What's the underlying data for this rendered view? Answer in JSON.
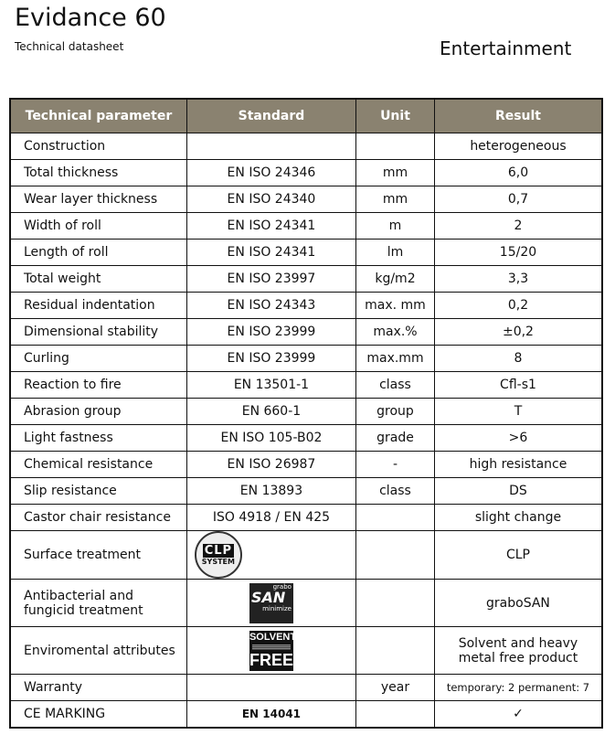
{
  "header": {
    "title": "Evidance 60",
    "subtitle": "Technical datasheet",
    "category": "Entertainment"
  },
  "table": {
    "columns": [
      "Technical parameter",
      "Standard",
      "Unit",
      "Result"
    ],
    "rows": [
      {
        "parameter": "Construction",
        "standard": "",
        "unit": "",
        "result": "heterogeneous"
      },
      {
        "parameter": "Total thickness",
        "standard": "EN ISO 24346",
        "unit": "mm",
        "result": "6,0"
      },
      {
        "parameter": "Wear layer thickness",
        "standard": "EN ISO 24340",
        "unit": "mm",
        "result": "0,7"
      },
      {
        "parameter": "Width of roll",
        "standard": "EN ISO 24341",
        "unit": "m",
        "result": "2"
      },
      {
        "parameter": "Length of roll",
        "standard": "EN ISO 24341",
        "unit": "lm",
        "result": "15/20"
      },
      {
        "parameter": "Total weight",
        "standard": "EN ISO 23997",
        "unit": "kg/m2",
        "result": "3,3"
      },
      {
        "parameter": "Residual indentation",
        "standard": "EN ISO 24343",
        "unit": "max. mm",
        "result": "0,2"
      },
      {
        "parameter": "Dimensional stability",
        "standard": "EN ISO 23999",
        "unit": "max.%",
        "result": "±0,2"
      },
      {
        "parameter": "Curling",
        "standard": "EN ISO 23999",
        "unit": "max.mm",
        "result": "8"
      },
      {
        "parameter": "Reaction to fire",
        "standard": "EN 13501-1",
        "unit": "class",
        "result": "Cfl-s1"
      },
      {
        "parameter": "Abrasion group",
        "standard": "EN 660-1",
        "unit": "group",
        "result": "T"
      },
      {
        "parameter": "Light fastness",
        "standard": "EN ISO 105-B02",
        "unit": "grade",
        "result": ">6"
      },
      {
        "parameter": "Chemical resistance",
        "standard": "EN ISO 26987",
        "unit": "-",
        "result": "high resistance"
      },
      {
        "parameter": "Slip resistance",
        "standard": "EN 13893",
        "unit": "class",
        "result": "DS"
      },
      {
        "parameter": "Castor chair resistance",
        "standard": "ISO 4918 / EN 425",
        "unit": "",
        "result": "slight change"
      }
    ],
    "logo_rows": [
      {
        "parameter": "Surface treatment",
        "logo_text": "CLP SYSTEM",
        "result": "CLP"
      },
      {
        "parameter": "Antibacterial and fungicid treatment",
        "logo_text": "grabo SAN minimize the growth of microorganisms",
        "result": "graboSAN"
      },
      {
        "parameter": "Enviromental attributes",
        "logo_text": "SOLVENT FREE",
        "result": "Solvent and heavy metal free product"
      }
    ],
    "warranty": {
      "parameter": "Warranty",
      "unit": "year",
      "result": "temporary: 2 permanent: 7"
    },
    "ce": {
      "parameter": "CE MARKING",
      "standard": "EN 14041",
      "result": "✓"
    }
  }
}
